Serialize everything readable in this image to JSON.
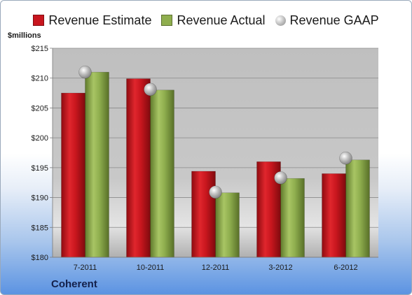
{
  "chart_data": {
    "type": "bar",
    "categories": [
      "7-2011",
      "10-2011",
      "12-2011",
      "3-2012",
      "6-2012"
    ],
    "series": [
      {
        "name": "Revenue Estimate",
        "kind": "bar",
        "color": "#c8161e",
        "values": [
          207.5,
          209.9,
          194.4,
          196.0,
          194.0
        ]
      },
      {
        "name": "Revenue Actual",
        "kind": "bar",
        "color": "#8fae4e",
        "values": [
          211.0,
          208.0,
          190.8,
          193.2,
          196.3
        ]
      },
      {
        "name": "Revenue GAAP",
        "kind": "marker",
        "color": "#b8b8b8",
        "values": [
          211.0,
          208.1,
          190.9,
          193.3,
          196.6
        ]
      }
    ],
    "ylabel": "$millions",
    "ylim": [
      180,
      215
    ],
    "yticks": [
      180,
      185,
      190,
      195,
      200,
      205,
      210,
      215
    ],
    "ytick_labels": [
      "$180",
      "$185",
      "$190",
      "$195",
      "$200",
      "$205",
      "$210",
      "$215"
    ],
    "grid": true,
    "legend": "top",
    "footer": "Coherent"
  }
}
